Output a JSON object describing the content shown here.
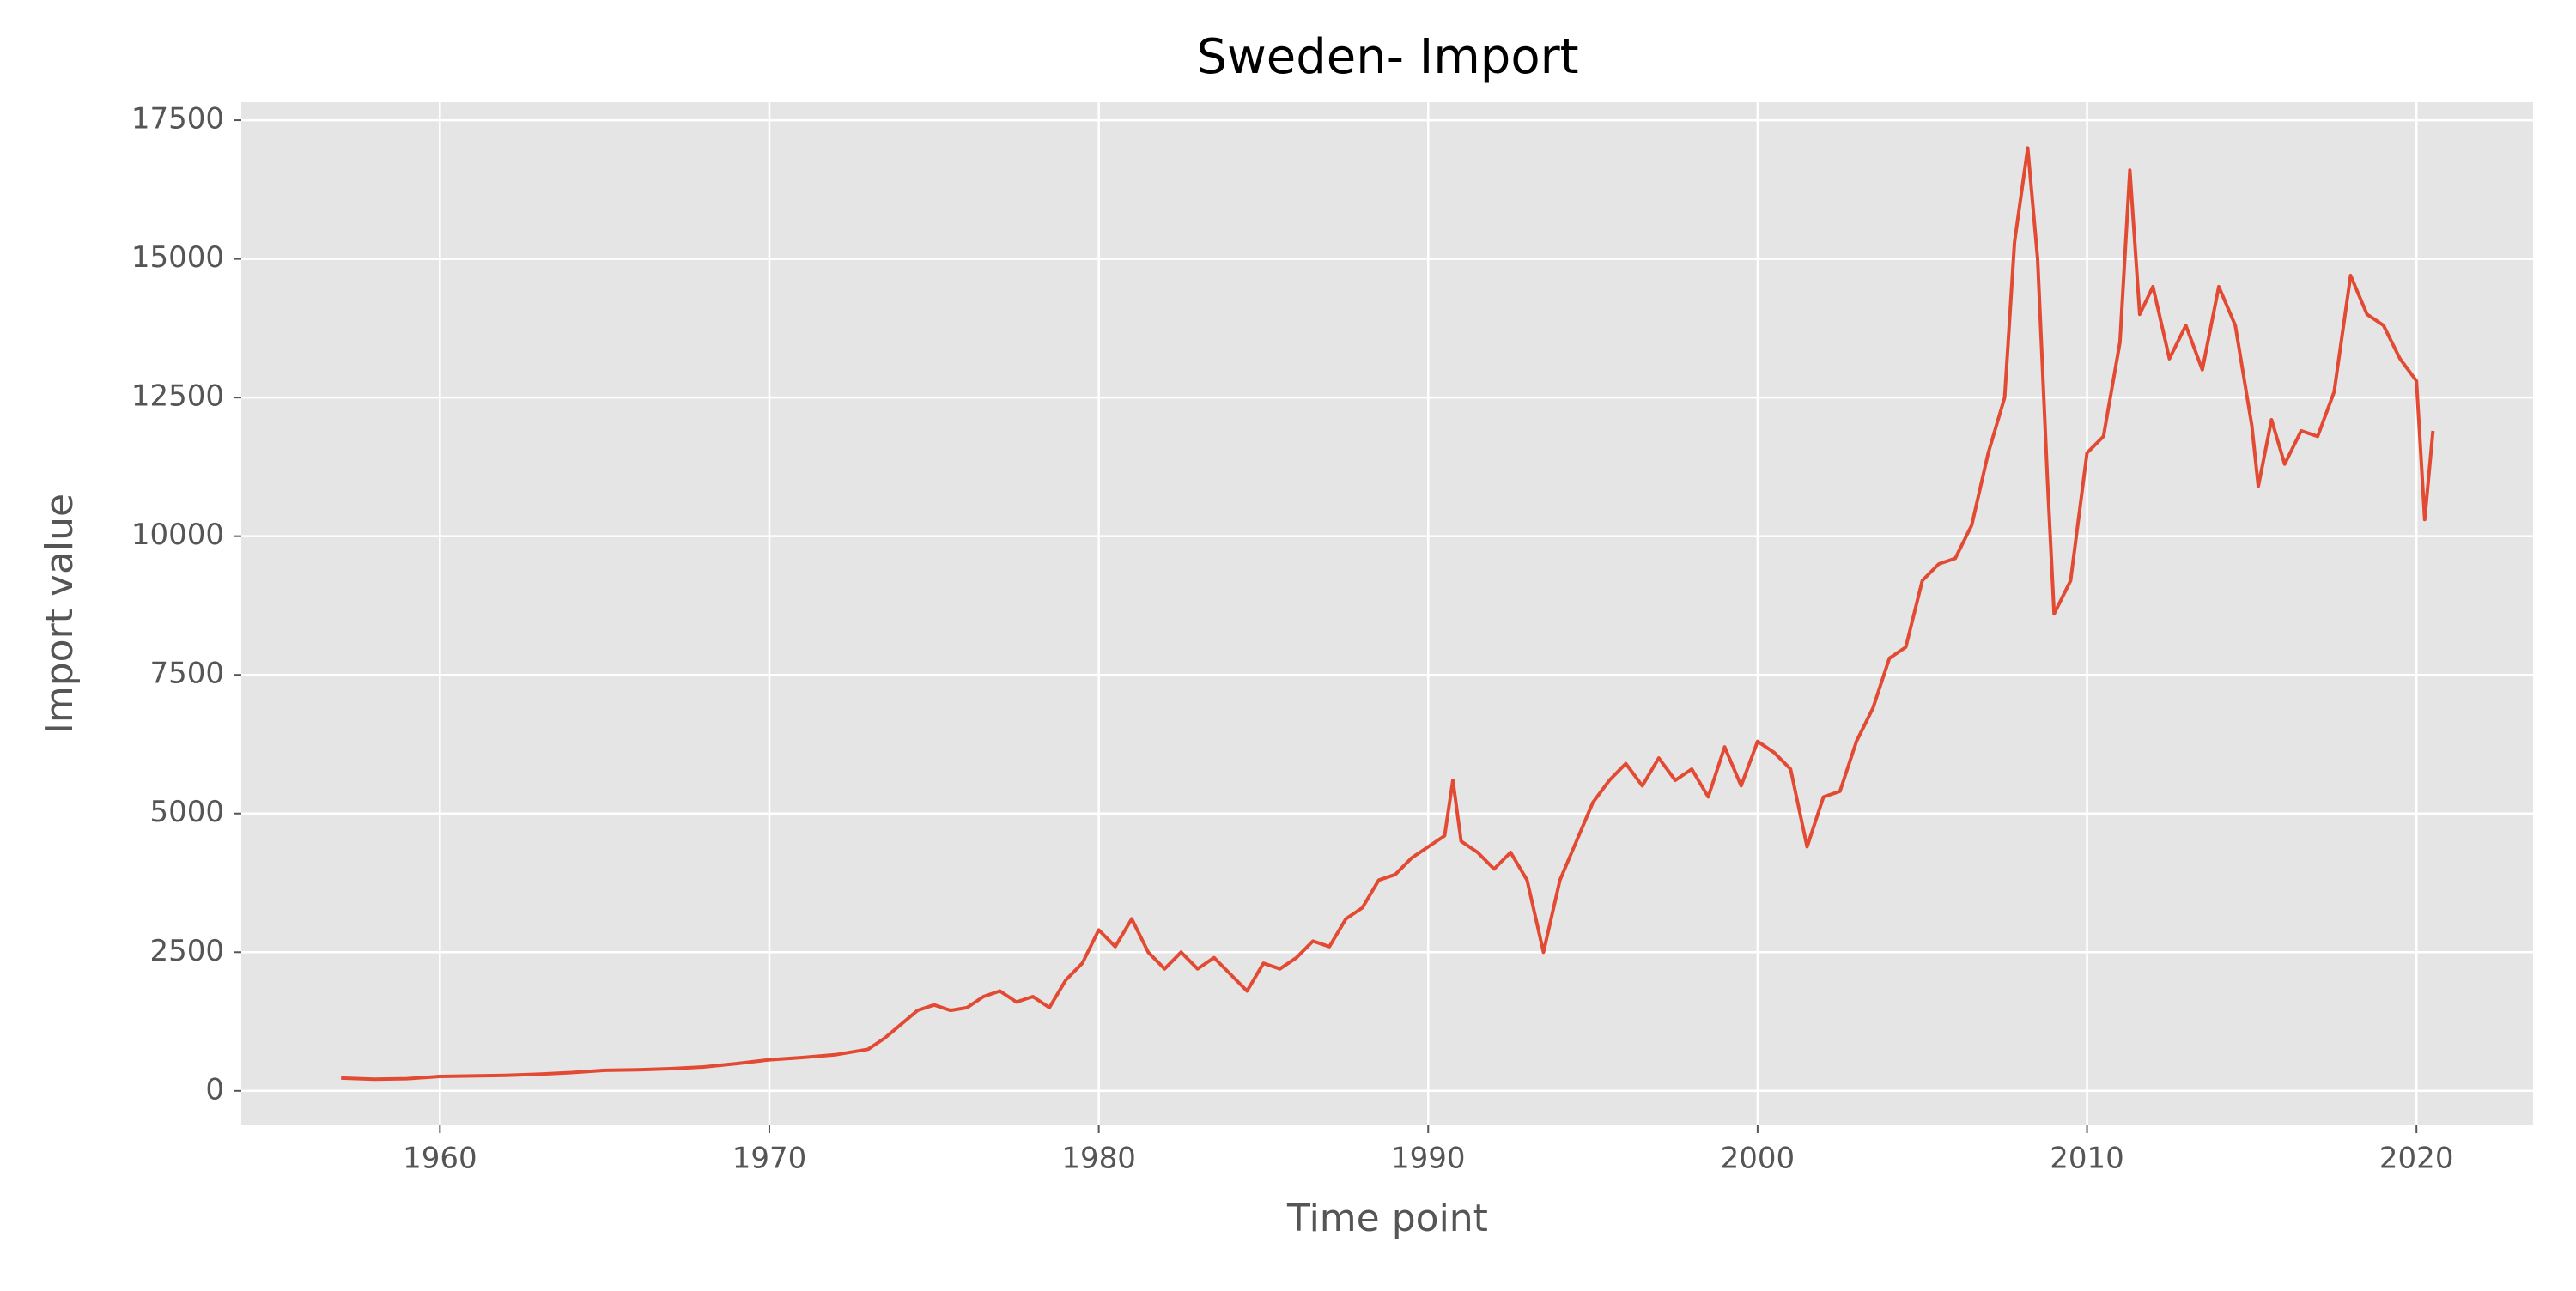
{
  "chart_data": {
    "type": "line",
    "title": "Sweden- Import",
    "xlabel": "Time point",
    "ylabel": "Import value",
    "x": [
      1957,
      1958,
      1959,
      1960,
      1961,
      1962,
      1963,
      1964,
      1965,
      1966,
      1967,
      1968,
      1969,
      1970,
      1971,
      1972,
      1973,
      1973.5,
      1974,
      1974.5,
      1975,
      1975.5,
      1976,
      1976.5,
      1977,
      1977.5,
      1978,
      1978.5,
      1979,
      1979.5,
      1980,
      1980.5,
      1981,
      1981.5,
      1982,
      1982.5,
      1983,
      1983.5,
      1984,
      1984.5,
      1985,
      1985.5,
      1986,
      1986.5,
      1987,
      1987.5,
      1988,
      1988.5,
      1989,
      1989.5,
      1990,
      1990.5,
      1990.75,
      1991,
      1991.5,
      1992,
      1992.5,
      1993,
      1993.5,
      1994,
      1994.5,
      1995,
      1995.5,
      1996,
      1996.5,
      1997,
      1997.5,
      1998,
      1998.5,
      1999,
      1999.5,
      2000,
      2000.5,
      2001,
      2001.5,
      2002,
      2002.5,
      2003,
      2003.5,
      2004,
      2004.5,
      2005,
      2005.5,
      2006,
      2006.5,
      2007,
      2007.5,
      2007.8,
      2008.2,
      2008.5,
      2008.8,
      2009,
      2009.5,
      2010,
      2010.5,
      2011,
      2011.3,
      2011.6,
      2012,
      2012.5,
      2013,
      2013.5,
      2014,
      2014.5,
      2015,
      2015.2,
      2015.6,
      2016,
      2016.5,
      2017,
      2017.5,
      2018,
      2018.5,
      2019,
      2019.5,
      2020,
      2020.25,
      2020.5
    ],
    "series": [
      {
        "color": "#E24A33",
        "values": [
          230,
          210,
          220,
          260,
          270,
          280,
          300,
          330,
          370,
          380,
          400,
          430,
          490,
          560,
          600,
          650,
          750,
          950,
          1200,
          1450,
          1550,
          1450,
          1500,
          1700,
          1800,
          1600,
          1700,
          1500,
          2000,
          2300,
          2900,
          2600,
          3100,
          2500,
          2200,
          2500,
          2200,
          2400,
          2100,
          1800,
          2300,
          2200,
          2400,
          2700,
          2600,
          3100,
          3300,
          3800,
          3900,
          4200,
          4400,
          4600,
          5600,
          4500,
          4300,
          4000,
          4300,
          3800,
          2500,
          3800,
          4500,
          5200,
          5600,
          5900,
          5500,
          6000,
          5600,
          5800,
          5300,
          6200,
          5500,
          6300,
          6100,
          5800,
          4400,
          5300,
          5400,
          6300,
          6900,
          7800,
          8000,
          9200,
          9500,
          9600,
          10200,
          11500,
          12500,
          15300,
          17000,
          15000,
          11000,
          8600,
          9200,
          11500,
          11800,
          13500,
          16600,
          14000,
          14500,
          13200,
          13800,
          13000,
          14500,
          13800,
          12000,
          10900,
          12100,
          11300,
          11900,
          11800,
          12600,
          14700,
          14000,
          13800,
          13200,
          12800,
          10300,
          11900
        ]
      }
    ],
    "xlim": [
      1953.97,
      2023.54
    ],
    "xticks": [
      1960,
      1970,
      1980,
      1990,
      2000,
      2010,
      2020
    ],
    "ylim": [
      -622,
      17826
    ],
    "yticks": [
      0,
      2500,
      5000,
      7500,
      10000,
      12500,
      15000,
      17500
    ],
    "grid": true
  }
}
